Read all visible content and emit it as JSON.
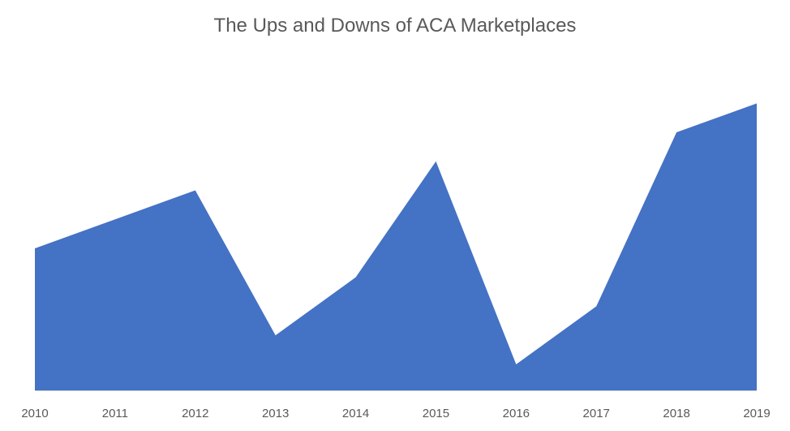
{
  "chart_data": {
    "type": "area",
    "title": "The Ups and Downs of ACA Marketplaces",
    "xlabel": "",
    "ylabel": "",
    "categories": [
      "2010",
      "2011",
      "2012",
      "2013",
      "2014",
      "2015",
      "2016",
      "2017",
      "2018",
      "2019"
    ],
    "series": [
      {
        "values": [
          49,
          59,
          69,
          19,
          39,
          79,
          9,
          29,
          89,
          99
        ],
        "color": "#4472C4"
      }
    ],
    "ylim": [
      0,
      124
    ],
    "y_axis_visible": false,
    "grid": false,
    "legend": "none",
    "axis_line_color": "#d9d9d9",
    "tick_label_color": "#595959"
  }
}
